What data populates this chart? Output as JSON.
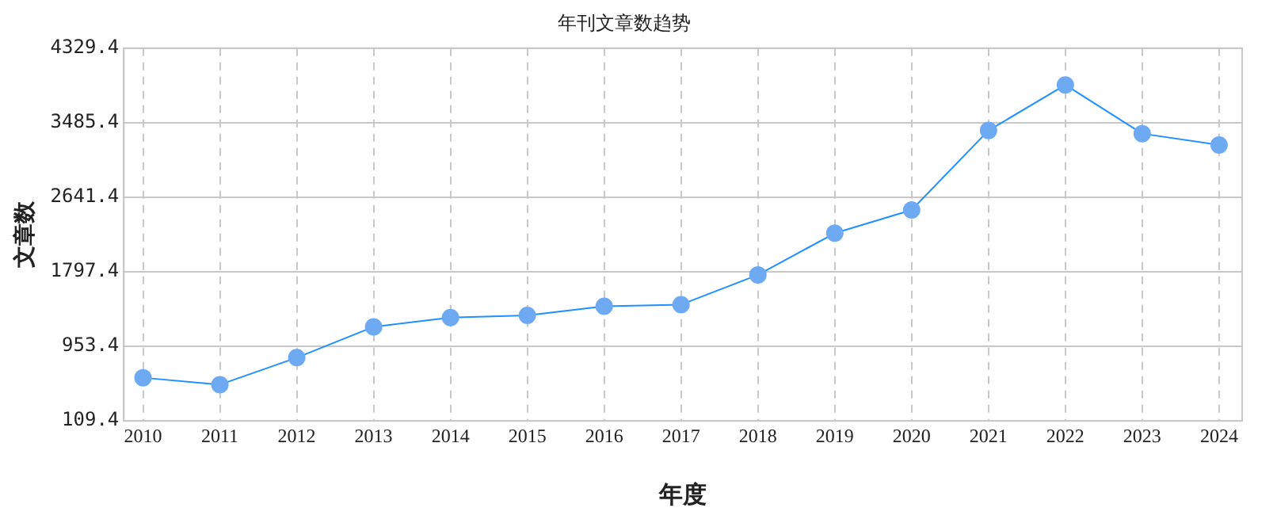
{
  "chart_data": {
    "type": "line",
    "title": "年刊文章数趋势",
    "xlabel": "年度",
    "ylabel": "文章数",
    "x": [
      2010,
      2011,
      2012,
      2013,
      2014,
      2015,
      2016,
      2017,
      2018,
      2019,
      2020,
      2021,
      2022,
      2023,
      2024
    ],
    "series": [
      {
        "color": "#1e90ff",
        "values": [
          599,
          520,
          826,
          1175,
          1279,
          1304,
          1408,
          1426,
          1763,
          2235,
          2498,
          3398,
          3913,
          3362,
          3233
        ]
      }
    ],
    "xlim": [
      2009.75,
      2024.3
    ],
    "xticks": [
      2010,
      2011,
      2012,
      2013,
      2014,
      2015,
      2016,
      2017,
      2018,
      2019,
      2020,
      2021,
      2022,
      2023,
      2024
    ],
    "ylim": [
      109.4,
      4329.4
    ],
    "yticks": [
      109.4,
      953.4,
      1797.4,
      2641.4,
      3485.4,
      4329.4
    ],
    "grid": true,
    "marker": "circle",
    "line_style": "solid",
    "legend": false
  }
}
